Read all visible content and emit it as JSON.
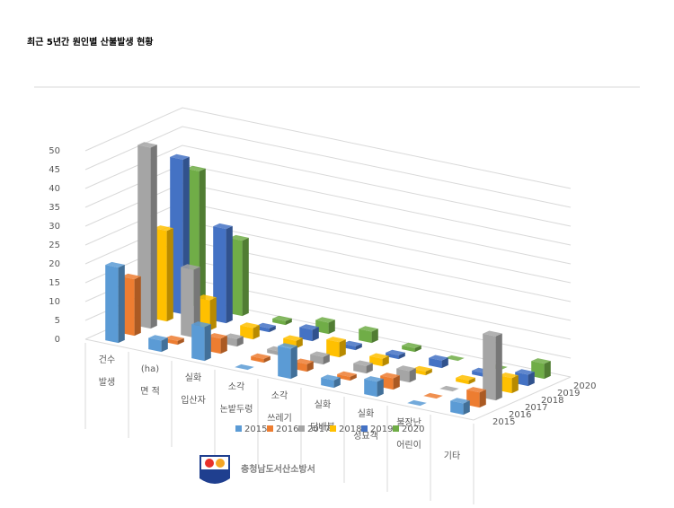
{
  "chart_data": {
    "type": "bar3d",
    "title": "최근 5년간 원인별 산불발생 현황",
    "categories": [
      [
        "건수",
        "발생"
      ],
      [
        "(ha)",
        "면 적"
      ],
      [
        "실화",
        "입산자"
      ],
      [
        "소각",
        "논밭두렁"
      ],
      [
        "소각",
        "쓰레기"
      ],
      [
        "실화",
        "담배불"
      ],
      [
        "실화",
        "성묘객"
      ],
      [
        "불장난",
        "어린이"
      ],
      [
        "기타"
      ]
    ],
    "series": [
      {
        "name": "2015",
        "color": "#5b9bd5",
        "values": [
          20,
          3,
          9,
          0,
          8,
          2,
          4,
          0,
          3
        ]
      },
      {
        "name": "2016",
        "color": "#ed7d31",
        "values": [
          15,
          1,
          4,
          1,
          2,
          1,
          3,
          0,
          4
        ]
      },
      {
        "name": "2017",
        "color": "#a5a5a5",
        "values": [
          48,
          18,
          2,
          1,
          2,
          2,
          3,
          0,
          17
        ]
      },
      {
        "name": "2018",
        "color": "#ffc000",
        "values": [
          24,
          8,
          3,
          2,
          4,
          2,
          1,
          1,
          4
        ]
      },
      {
        "name": "2019",
        "color": "#4472c4",
        "values": [
          41,
          25,
          1,
          3,
          1,
          1,
          2,
          1,
          3
        ]
      },
      {
        "name": "2020",
        "color": "#70ad47",
        "values": [
          36,
          20,
          1,
          3,
          3,
          1,
          0,
          0,
          4
        ]
      }
    ],
    "ylim": [
      0,
      50
    ],
    "yticks": [
      0,
      5,
      10,
      15,
      20,
      25,
      30,
      35,
      40,
      45,
      50
    ],
    "grid": true,
    "legend": "bottom"
  },
  "footer": {
    "org": "충청남도서산소방서"
  }
}
